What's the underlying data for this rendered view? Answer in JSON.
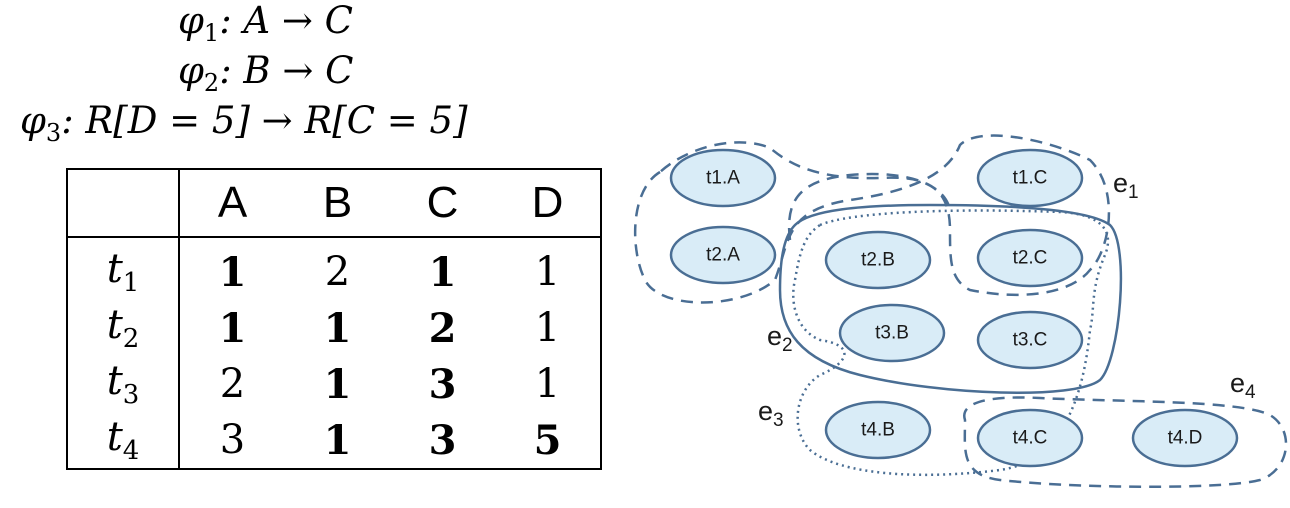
{
  "formulas": [
    {
      "name": "φ",
      "sub": "1",
      "expr": ": A → C"
    },
    {
      "name": "φ",
      "sub": "2",
      "expr": ": B → C"
    },
    {
      "name": "φ",
      "sub": "3",
      "expr": ": R[D = 5] → R[C = 5]"
    }
  ],
  "table": {
    "columns": [
      "A",
      "B",
      "C",
      "D"
    ],
    "rows": [
      {
        "tuple": "t",
        "sub": "1",
        "cells": [
          {
            "v": "1",
            "bold": true
          },
          {
            "v": "2",
            "bold": false
          },
          {
            "v": "1",
            "bold": true
          },
          {
            "v": "1",
            "bold": false
          }
        ]
      },
      {
        "tuple": "t",
        "sub": "2",
        "cells": [
          {
            "v": "1",
            "bold": true
          },
          {
            "v": "1",
            "bold": true
          },
          {
            "v": "2",
            "bold": true
          },
          {
            "v": "1",
            "bold": false
          }
        ]
      },
      {
        "tuple": "t",
        "sub": "3",
        "cells": [
          {
            "v": "2",
            "bold": false
          },
          {
            "v": "1",
            "bold": true
          },
          {
            "v": "3",
            "bold": true
          },
          {
            "v": "1",
            "bold": false
          }
        ]
      },
      {
        "tuple": "t",
        "sub": "4",
        "cells": [
          {
            "v": "3",
            "bold": false
          },
          {
            "v": "1",
            "bold": true
          },
          {
            "v": "3",
            "bold": true
          },
          {
            "v": "5",
            "bold": true
          }
        ]
      }
    ]
  },
  "hypergraph": {
    "nodes": [
      "t1.A",
      "t1.C",
      "t2.A",
      "t2.B",
      "t2.C",
      "t3.B",
      "t3.C",
      "t4.B",
      "t4.C",
      "t4.D"
    ],
    "edges": [
      {
        "base": "e",
        "sub": "1",
        "style": "dashed"
      },
      {
        "base": "e",
        "sub": "2",
        "style": "solid"
      },
      {
        "base": "e",
        "sub": "3",
        "style": "dotted"
      },
      {
        "base": "e",
        "sub": "4",
        "style": "dashed"
      }
    ],
    "colors": {
      "node_fill": "#d9ecf7",
      "stroke": "#4a6e94"
    }
  }
}
